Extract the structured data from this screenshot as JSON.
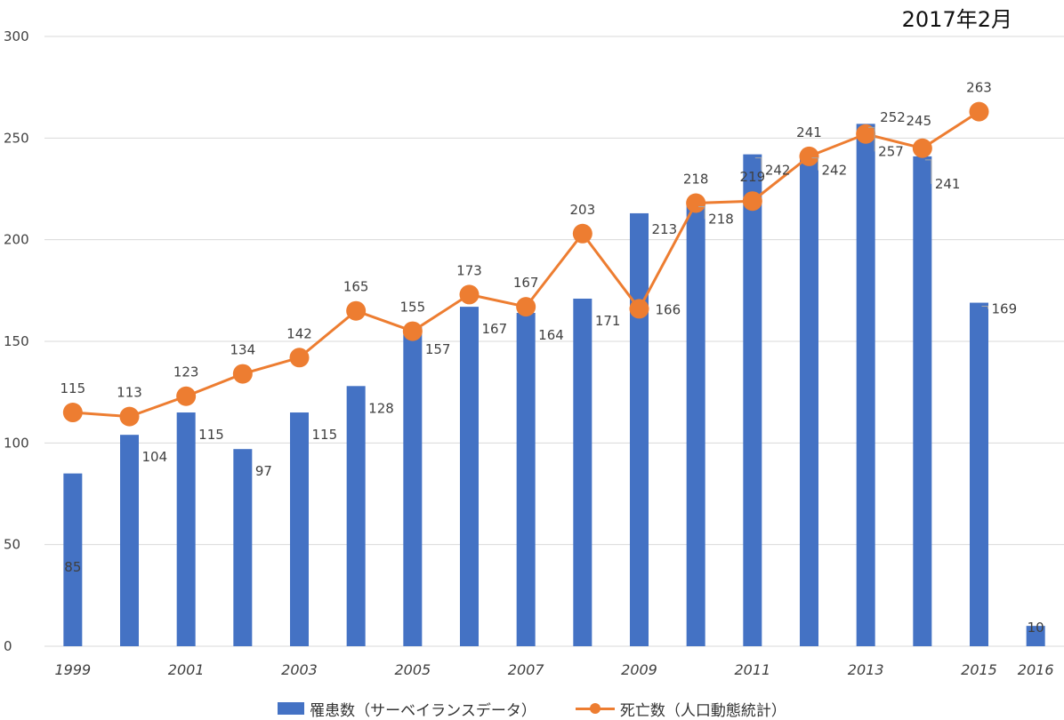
{
  "date_label": "2017年2月",
  "colors": {
    "bar": "#4472C4",
    "line": "#ED7D31",
    "grid": "#d9d9d9",
    "text": "#404040"
  },
  "legend": {
    "bar_label": "罹患数（サーベイランスデータ）",
    "line_label": "死亡数（人口動態統計）"
  },
  "chart_data": {
    "type": "bar",
    "ylim": [
      0,
      300
    ],
    "yticks": [
      "0",
      "50",
      "100",
      "150",
      "200",
      "250",
      "300"
    ],
    "grid": true,
    "legend_position": "bottom",
    "categories": [
      "1999",
      "2000",
      "2001",
      "2002",
      "2003",
      "2004",
      "2005",
      "2006",
      "2007",
      "2008",
      "2009",
      "2010",
      "2011",
      "2012",
      "2013",
      "2014",
      "2015",
      "2016"
    ],
    "xtick_labels": [
      "1999",
      "",
      "2001",
      "",
      "2003",
      "",
      "2005",
      "",
      "2007",
      "",
      "2009",
      "",
      "2011",
      "",
      "2013",
      "",
      "2015",
      "2016"
    ],
    "series": [
      {
        "name": "罹患数（サーベイランスデータ）",
        "kind": "bar",
        "values": [
          85,
          104,
          115,
          97,
          115,
          128,
          157,
          167,
          164,
          171,
          213,
          218,
          242,
          242,
          257,
          241,
          169,
          10
        ]
      },
      {
        "name": "死亡数（人口動態統計）",
        "kind": "line",
        "values": [
          115,
          113,
          123,
          134,
          142,
          165,
          155,
          173,
          167,
          203,
          166,
          218,
          219,
          241,
          252,
          245,
          263,
          null
        ]
      }
    ]
  }
}
